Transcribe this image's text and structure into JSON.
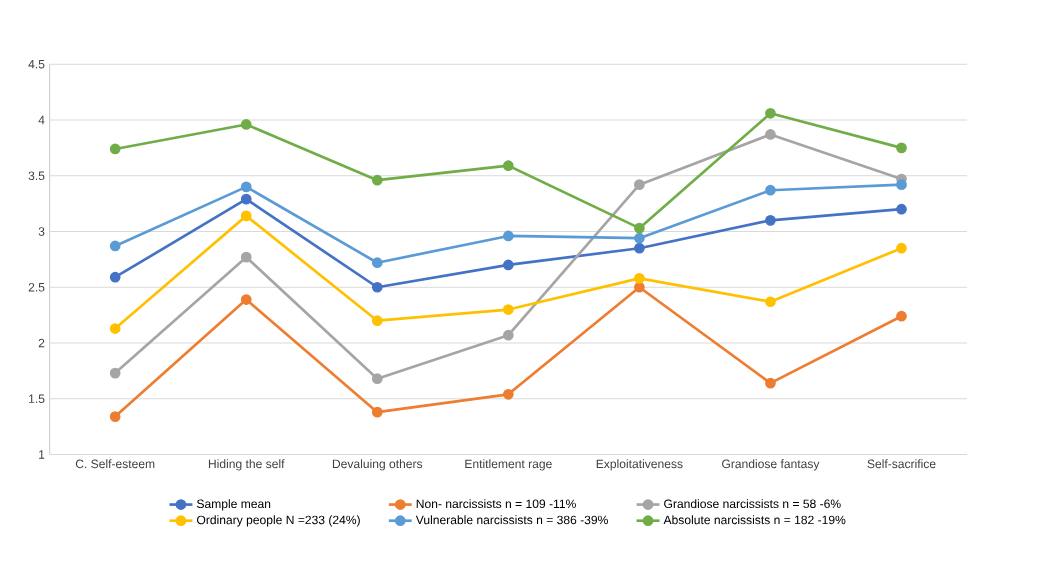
{
  "chart_data": {
    "type": "line",
    "categories": [
      "C. Self-esteem",
      "Hiding the self",
      "Devaluing others",
      "Entitlement rage",
      "Exploitativeness",
      "Grandiose fantasy",
      "Self-sacrifice"
    ],
    "series": [
      {
        "name": "Sample mean",
        "color": "#4472c4",
        "values": [
          2.59,
          3.29,
          2.5,
          2.7,
          2.85,
          3.1,
          3.2
        ]
      },
      {
        "name": "Non- narcissists n = 109 -11%",
        "color": "#ed7d31",
        "values": [
          1.34,
          2.39,
          1.38,
          1.54,
          2.5,
          1.64,
          2.24
        ]
      },
      {
        "name": "Grandiose narcissists n = 58  -6%",
        "color": "#a5a5a5",
        "values": [
          1.73,
          2.77,
          1.68,
          2.07,
          3.42,
          3.87,
          3.47
        ]
      },
      {
        "name": "Ordinary people N =233 (24%)",
        "color": "#ffc000",
        "values": [
          2.13,
          3.14,
          2.2,
          2.3,
          2.58,
          2.37,
          2.85
        ]
      },
      {
        "name": "Vulnerable narcissists n = 386  -39%",
        "color": "#5b9bd5",
        "values": [
          2.87,
          3.4,
          2.72,
          2.96,
          2.94,
          3.37,
          3.42
        ]
      },
      {
        "name": "Absolute narcissists n = 182 -19%",
        "color": "#70ad47",
        "values": [
          3.74,
          3.96,
          3.46,
          3.59,
          3.03,
          4.06,
          3.75
        ]
      }
    ],
    "ylim": [
      1,
      4.5
    ],
    "yticks": [
      1,
      1.5,
      2,
      2.5,
      3,
      3.5,
      4,
      4.5
    ],
    "grid": "y",
    "legend": "bottom",
    "marker": "circle",
    "line_style": "solid"
  }
}
